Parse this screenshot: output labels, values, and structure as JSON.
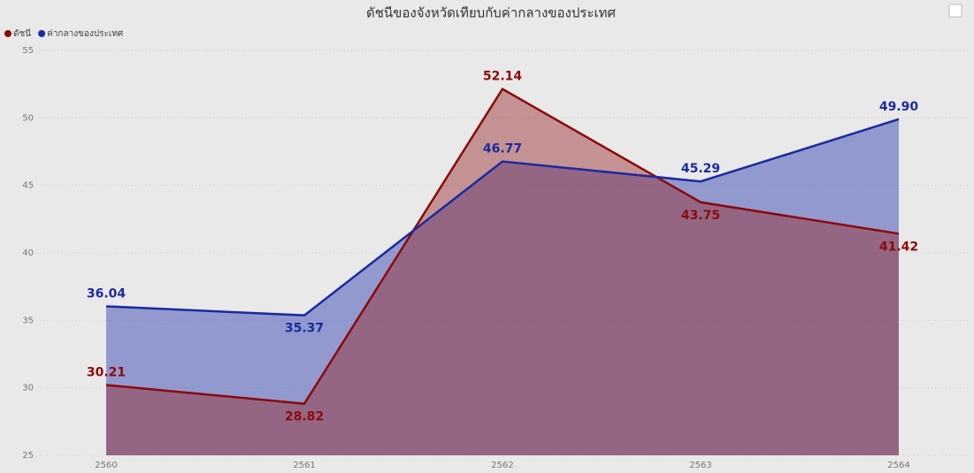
{
  "chart_data": {
    "type": "area",
    "title": "ดัชนีของจังหวัดเทียบกับค่ากลางของประเทศ",
    "categories": [
      "2560",
      "2561",
      "2562",
      "2563",
      "2564"
    ],
    "series": [
      {
        "name": "ดัชนี",
        "color": "#8b0a0a",
        "values": [
          30.21,
          28.82,
          52.14,
          43.75,
          41.42
        ],
        "value_labels": [
          "30.21",
          "28.82",
          "52.14",
          "43.75",
          "41.42"
        ]
      },
      {
        "name": "ค่ากลางของประเทศ",
        "color": "#1c2a9e",
        "values": [
          36.04,
          35.37,
          46.77,
          45.29,
          49.9
        ],
        "value_labels": [
          "36.04",
          "35.37",
          "46.77",
          "45.29",
          "49.90"
        ]
      }
    ],
    "ylim": [
      25,
      55
    ],
    "yticks": [
      25,
      30,
      35,
      40,
      45,
      50,
      55
    ],
    "grid": true,
    "legend": "top-left"
  }
}
